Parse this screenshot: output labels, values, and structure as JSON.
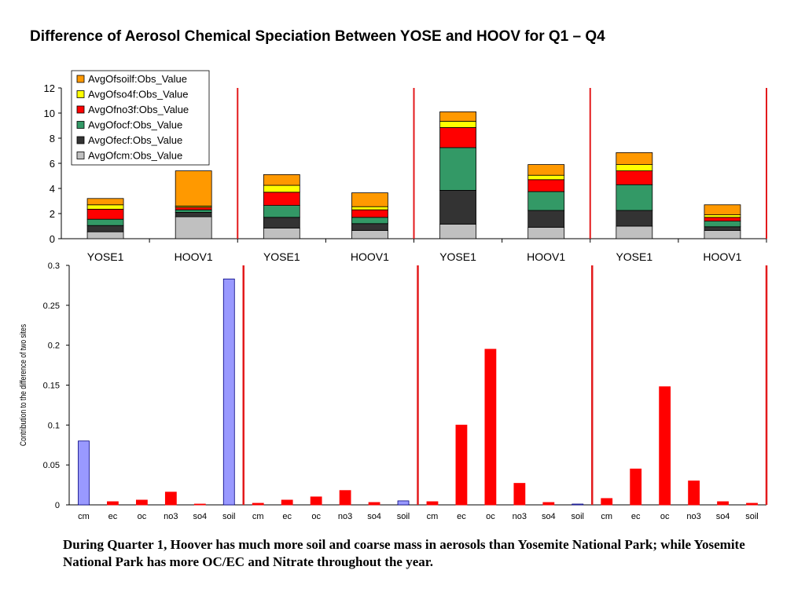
{
  "page": {
    "title": "Difference of Aerosol Chemical Speciation Between YOSE and HOOV for Q1 – Q4",
    "caption": "During Quarter 1, Hoover has much more soil and coarse mass in aerosols than Yosemite National Park; while Yosemite National Park has more OC/EC and Nitrate throughout the year."
  },
  "colors": {
    "soil": "#ff9900",
    "so4": "#ffff00",
    "no3": "#ff0000",
    "ocf": "#339966",
    "ecf": "#333333",
    "cm": "#c0c0c0",
    "bar_blue": "#9999ff",
    "bar_red": "#ff0000",
    "separator": "#e31a1c"
  },
  "chart_data": [
    {
      "type": "bar",
      "stacked": true,
      "title": "",
      "categories": [
        "YOSE1",
        "HOOV1",
        "YOSE1",
        "HOOV1",
        "YOSE1",
        "HOOV1",
        "YOSE1",
        "HOOV1"
      ],
      "series": [
        {
          "name": "AvgOfcm:Obs_Value",
          "key": "cm",
          "values": [
            0.55,
            1.75,
            0.85,
            0.65,
            1.15,
            0.9,
            1.0,
            0.65
          ]
        },
        {
          "name": "AvgOfecf:Obs_Value",
          "key": "ecf",
          "values": [
            0.5,
            0.35,
            0.85,
            0.55,
            2.7,
            1.35,
            1.25,
            0.3
          ]
        },
        {
          "name": "AvgOfocf:Obs_Value",
          "key": "ocf",
          "values": [
            0.5,
            0.2,
            0.95,
            0.5,
            3.4,
            1.5,
            2.05,
            0.45
          ]
        },
        {
          "name": "AvgOfno3f:Obs_Value",
          "key": "no3",
          "values": [
            0.8,
            0.2,
            1.05,
            0.6,
            1.6,
            0.95,
            1.1,
            0.3
          ]
        },
        {
          "name": "AvgOfso4f:Obs_Value",
          "key": "so4",
          "values": [
            0.35,
            0.1,
            0.55,
            0.25,
            0.5,
            0.35,
            0.5,
            0.2
          ]
        },
        {
          "name": "AvgOfsoilf:Obs_Value",
          "key": "soil",
          "values": [
            0.5,
            2.8,
            0.85,
            1.1,
            0.75,
            0.85,
            0.95,
            0.8
          ]
        }
      ],
      "legend_order": [
        "soil",
        "so4",
        "no3",
        "ocf",
        "ecf",
        "cm"
      ],
      "ylim": [
        0,
        12
      ],
      "yticks": [
        0,
        2,
        4,
        6,
        8,
        10,
        12
      ],
      "xlabel": "",
      "ylabel": "",
      "grid": false,
      "legend_position": "top-left"
    },
    {
      "type": "bar",
      "title": "",
      "categories": [
        "cm",
        "ec",
        "oc",
        "no3",
        "so4",
        "soil",
        "cm",
        "ec",
        "oc",
        "no3",
        "so4",
        "soil",
        "cm",
        "ec",
        "oc",
        "no3",
        "so4",
        "soil",
        "cm",
        "ec",
        "oc",
        "no3",
        "so4",
        "soil"
      ],
      "values": [
        0.08,
        0.004,
        0.006,
        0.016,
        0.001,
        0.283,
        0.002,
        0.006,
        0.01,
        0.018,
        0.003,
        0.005,
        0.004,
        0.1,
        0.195,
        0.027,
        0.003,
        0.001,
        0.008,
        0.045,
        0.148,
        0.03,
        0.004,
        0.002
      ],
      "bar_colors": [
        "blue",
        "red",
        "red",
        "red",
        "red",
        "blue",
        "red",
        "red",
        "red",
        "red",
        "red",
        "blue",
        "red",
        "red",
        "red",
        "red",
        "red",
        "blue",
        "red",
        "red",
        "red",
        "red",
        "red",
        "red"
      ],
      "ylim": [
        0,
        0.3
      ],
      "yticks": [
        0,
        0.05,
        0.1,
        0.15,
        0.2,
        0.25,
        0.3
      ],
      "ytick_labels": [
        "0",
        "0.05",
        "0.1",
        "0.15",
        "0.2",
        "0.25",
        "0.3"
      ],
      "xlabel": "",
      "ylabel": "Contribution to the difference of two sites",
      "grid": false
    }
  ]
}
